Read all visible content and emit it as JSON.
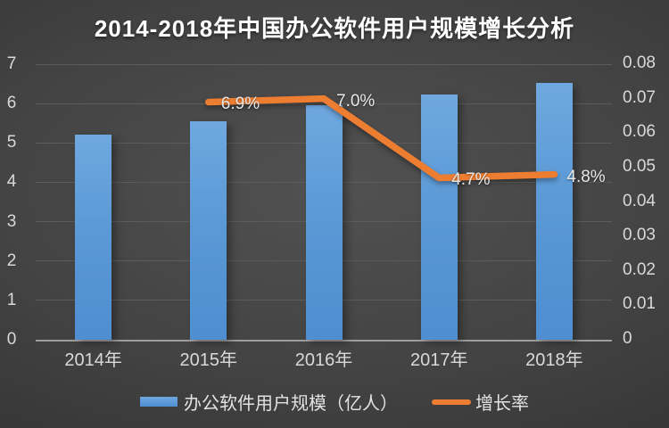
{
  "chart_data": {
    "type": "bar",
    "subtype": "combo-bar-line",
    "title": "2014-2018年中国办公软件用户规模增长分析",
    "categories": [
      "2014年",
      "2015年",
      "2016年",
      "2017年",
      "2018年"
    ],
    "series": [
      {
        "name": "办公软件用户规模（亿人）",
        "type": "bar",
        "axis": "left",
        "color": "#5B9BD5",
        "values": [
          5.2,
          5.56,
          5.95,
          6.23,
          6.53
        ]
      },
      {
        "name": "增长率",
        "type": "line",
        "axis": "right",
        "color": "#ED7D31",
        "values": [
          null,
          0.069,
          0.07,
          0.047,
          0.048
        ],
        "point_labels": [
          null,
          "6.9%",
          "7.0%",
          "4.7%",
          "4.8%"
        ]
      }
    ],
    "left_axis": {
      "min": 0,
      "max": 7,
      "tick_labels": [
        "7",
        "6",
        "5",
        "4",
        "3",
        "2",
        "1",
        "0"
      ]
    },
    "right_axis": {
      "min": 0,
      "max": 0.08,
      "tick_labels": [
        "0.08",
        "0.07",
        "0.06",
        "0.05",
        "0.04",
        "0.03",
        "0.02",
        "0.01",
        "0"
      ]
    },
    "grid": true,
    "legend_position": "bottom",
    "colors": {
      "background_center": "#515151",
      "background_edge": "#2c2c2c",
      "bar": "#5B9BD5",
      "line": "#ED7D31",
      "text": "#d9d9d9",
      "title_text": "#ffffff",
      "gridline": "#5c5c5c",
      "axis_line": "#9e9e9e"
    }
  }
}
